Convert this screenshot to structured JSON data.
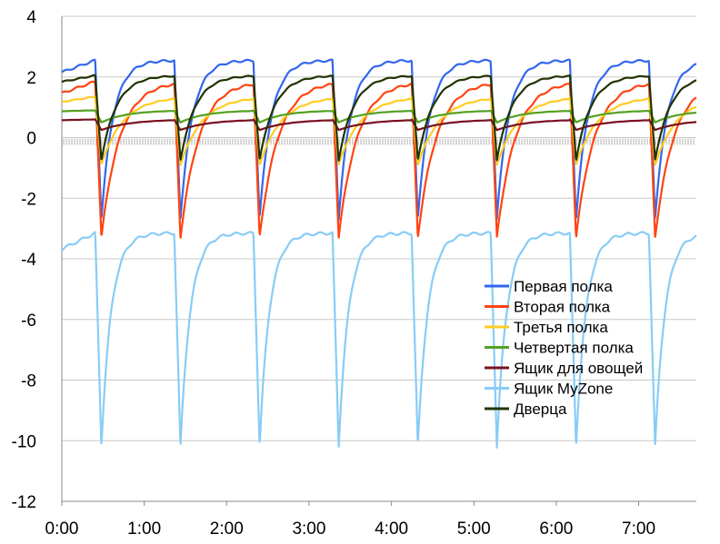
{
  "chart_data": {
    "type": "line",
    "xlim": [
      0,
      7.7
    ],
    "ylim": [
      -12,
      4
    ],
    "yticks": [
      4,
      2,
      0,
      -2,
      -4,
      -6,
      -8,
      -10,
      -12
    ],
    "ytick_labels": [
      "4",
      "2",
      "0",
      "-2",
      "-4",
      "-6",
      "-8",
      "-10",
      "-12"
    ],
    "xticks": [
      0,
      1,
      2,
      3,
      4,
      5,
      6,
      7
    ],
    "xtick_labels": [
      "0:00",
      "1:00",
      "2:00",
      "3:00",
      "4:00",
      "5:00",
      "6:00",
      "7:00"
    ],
    "grid": "horizontal",
    "legend_position": "right",
    "cycle_hours": 0.96,
    "series": [
      {
        "name": "Первая полка",
        "color": "#3366ee",
        "peak": 2.55,
        "trough": -2.7,
        "rise_tau": 0.14
      },
      {
        "name": "Вторая полка",
        "color": "#ff4411",
        "peak": 1.85,
        "trough": -3.3,
        "rise_tau": 0.22
      },
      {
        "name": "Третья полка",
        "color": "#ffcc22",
        "peak": 1.35,
        "trough": -0.9,
        "rise_tau": 0.26
      },
      {
        "name": "Четвертая полка",
        "color": "#55a020",
        "peak": 0.9,
        "trough": 0.5,
        "rise_tau": 0.3
      },
      {
        "name": "Ящик для овощей",
        "color": "#7a1020",
        "peak": 0.6,
        "trough": 0.25,
        "rise_tau": 0.35
      },
      {
        "name": "Ящик MyZone",
        "color": "#88ccf6",
        "peak": -3.15,
        "trough": -10.2,
        "rise_tau": 0.12
      },
      {
        "name": "Дверца",
        "color": "#223300",
        "peak": 2.05,
        "trough": -0.75,
        "rise_tau": 0.18
      }
    ]
  }
}
